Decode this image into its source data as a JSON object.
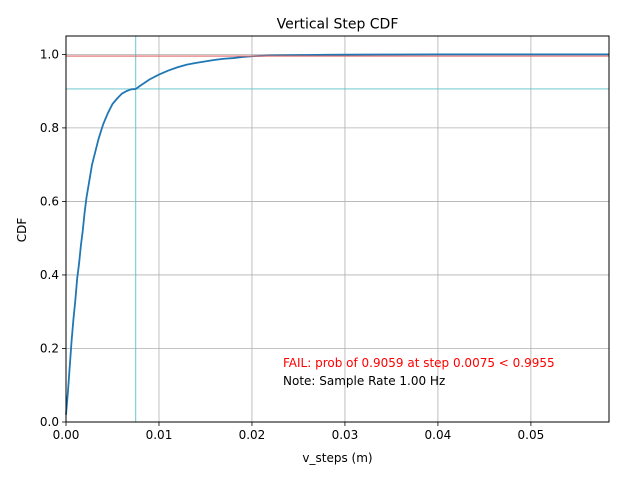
{
  "chart_data": {
    "type": "line",
    "title": "Vertical Step CDF",
    "xlabel": "v_steps (m)",
    "ylabel": "CDF",
    "xlim": [
      0,
      0.0584
    ],
    "ylim": [
      0,
      1.05
    ],
    "x_ticks": [
      "0.00",
      "0.01",
      "0.02",
      "0.03",
      "0.04",
      "0.05"
    ],
    "x_tick_values": [
      0.0,
      0.01,
      0.02,
      0.03,
      0.04,
      0.05
    ],
    "y_ticks": [
      "0.0",
      "0.2",
      "0.4",
      "0.6",
      "0.8",
      "1.0"
    ],
    "y_tick_values": [
      0.0,
      0.2,
      0.4,
      0.6,
      0.8,
      1.0
    ],
    "grid": true,
    "series": [
      {
        "color": "#1f77b4",
        "x": [
          0.0,
          0.0002,
          0.0004,
          0.0006,
          0.0008,
          0.001,
          0.0012,
          0.0014,
          0.0016,
          0.0018,
          0.002,
          0.0022,
          0.0024,
          0.0026,
          0.0028,
          0.003,
          0.0035,
          0.004,
          0.0045,
          0.005,
          0.0055,
          0.006,
          0.0065,
          0.007,
          0.0075,
          0.008,
          0.009,
          0.01,
          0.011,
          0.012,
          0.013,
          0.014,
          0.015,
          0.016,
          0.017,
          0.018,
          0.019,
          0.02,
          0.022,
          0.025,
          0.028,
          0.03,
          0.035,
          0.04,
          0.045,
          0.05,
          0.055,
          0.0584
        ],
        "y": [
          0.02,
          0.08,
          0.15,
          0.22,
          0.28,
          0.33,
          0.39,
          0.43,
          0.48,
          0.52,
          0.57,
          0.61,
          0.64,
          0.67,
          0.7,
          0.72,
          0.77,
          0.81,
          0.84,
          0.865,
          0.88,
          0.893,
          0.9,
          0.905,
          0.906,
          0.915,
          0.932,
          0.945,
          0.956,
          0.965,
          0.972,
          0.977,
          0.981,
          0.985,
          0.988,
          0.99,
          0.993,
          0.995,
          0.997,
          0.998,
          0.999,
          0.9993,
          0.9997,
          1.0,
          1.0,
          1.0,
          1.0,
          1.0
        ]
      }
    ],
    "reference_lines": {
      "red_horizontal_y": 0.9955,
      "red_color": "#e06666",
      "cyan_horizontal_y": 0.9059,
      "cyan_vertical_x": 0.0075,
      "cyan_color": "#5bc0c8"
    },
    "annotations": [
      {
        "text": "FAIL: prob of 0.9059 at step 0.0075 < 0.9955",
        "color": "#ff0000"
      },
      {
        "text": "Note: Sample Rate 1.00 Hz",
        "color": "#000000"
      }
    ]
  }
}
